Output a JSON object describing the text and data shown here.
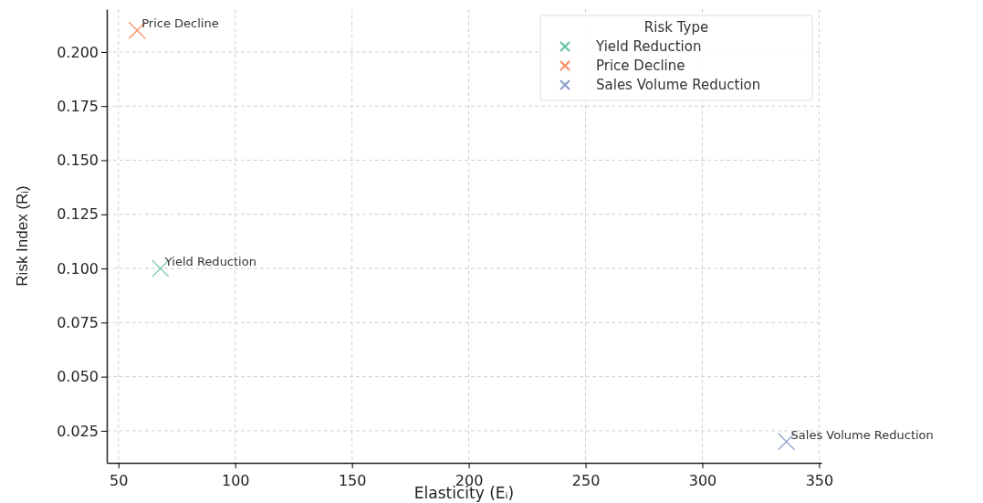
{
  "chart_data": {
    "type": "scatter",
    "xlabel": "Elasticity (Eᵢ)",
    "ylabel": "Risk Index (Rᵢ)",
    "legend_title": "Risk Type",
    "series": [
      {
        "name": "Yield Reduction",
        "color": "#66c2a5",
        "x": [
          68
        ],
        "values": [
          0.1
        ]
      },
      {
        "name": "Price Decline",
        "color": "#fc8d62",
        "x": [
          58
        ],
        "values": [
          0.21
        ]
      },
      {
        "name": "Sales Volume Reduction",
        "color": "#8da0cb",
        "x": [
          336
        ],
        "values": [
          0.02
        ]
      }
    ],
    "annotations": [
      {
        "text": "Yield Reduction",
        "x": 68,
        "y": 0.1
      },
      {
        "text": "Price Decline",
        "x": 58,
        "y": 0.21
      },
      {
        "text": "Sales Volume Reduction",
        "x": 336,
        "y": 0.02
      }
    ],
    "xlim": [
      45,
      351
    ],
    "ylim": [
      0.0102,
      0.2198
    ],
    "xticks": [
      50,
      100,
      150,
      200,
      250,
      300,
      350
    ],
    "yticks": [
      {
        "value": 0.025,
        "label": "0.025"
      },
      {
        "value": 0.05,
        "label": "0.050"
      },
      {
        "value": 0.075,
        "label": "0.075"
      },
      {
        "value": 0.1,
        "label": "0.100"
      },
      {
        "value": 0.125,
        "label": "0.125"
      },
      {
        "value": 0.15,
        "label": "0.150"
      },
      {
        "value": 0.175,
        "label": "0.175"
      },
      {
        "value": 0.2,
        "label": "0.200"
      }
    ],
    "grid": true,
    "legend": "top right",
    "marker": "cross"
  }
}
